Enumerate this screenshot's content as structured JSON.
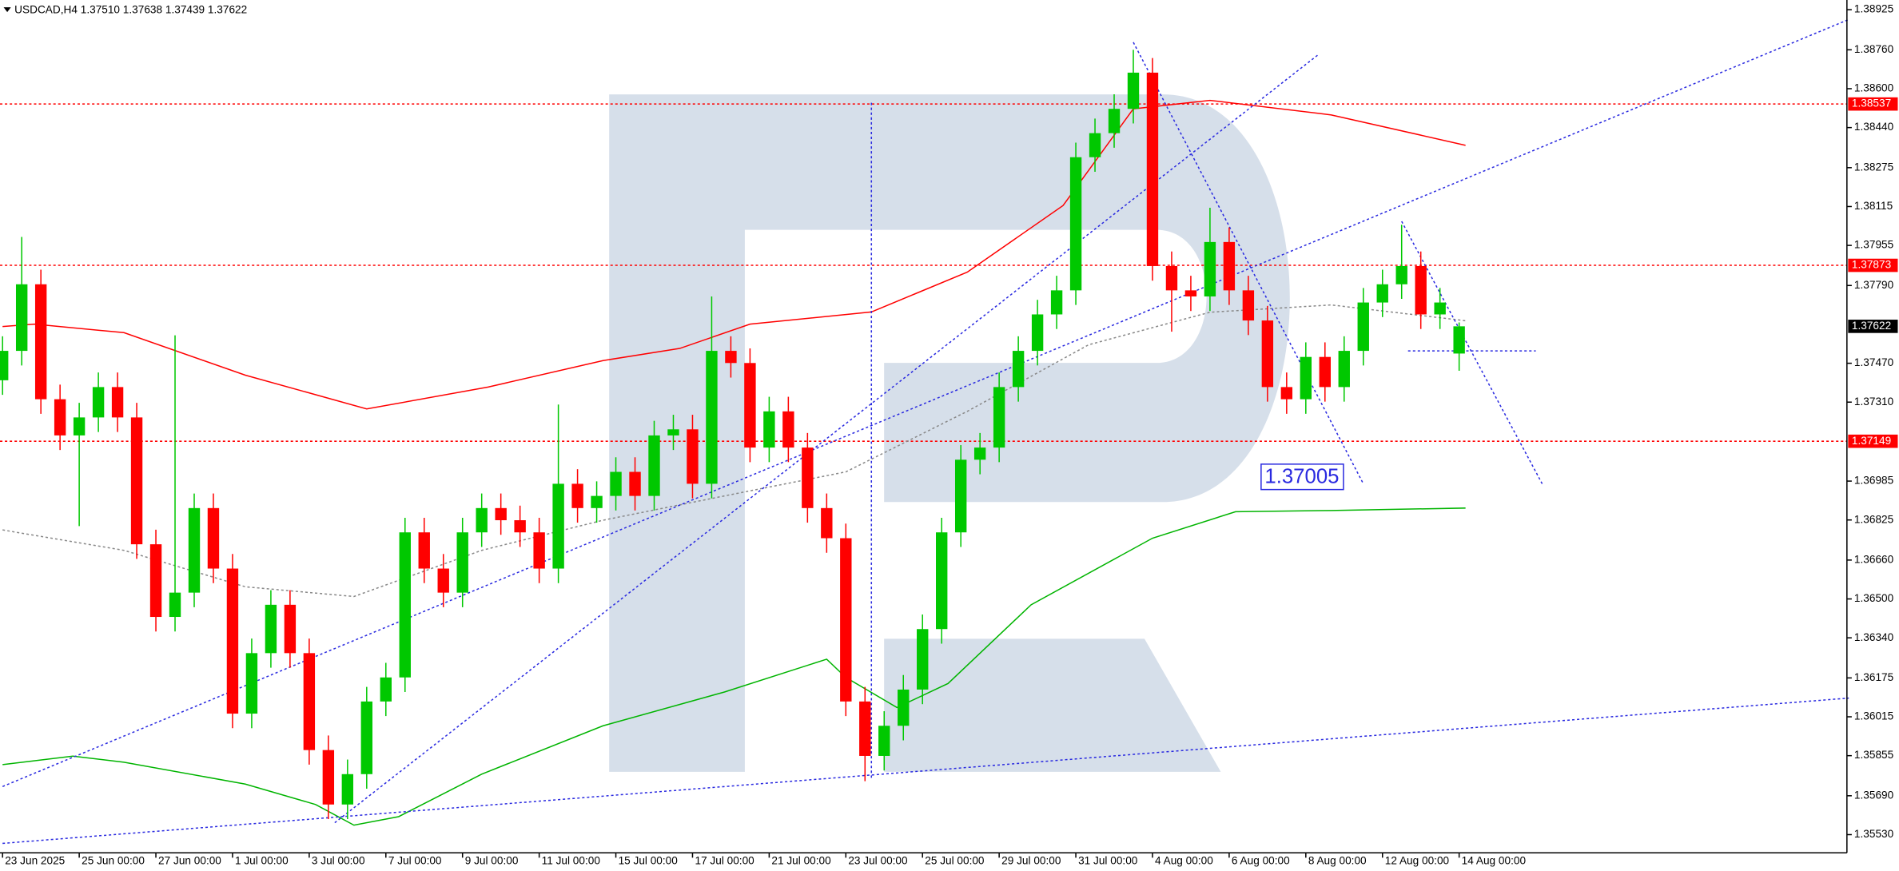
{
  "chart_data": {
    "type": "candlestick",
    "title": "USDCAD,H4  1.37510 1.37638 1.37439 1.37622",
    "x": [
      0,
      3,
      6,
      9,
      12,
      15,
      18,
      21,
      24,
      27,
      30,
      33,
      36,
      39,
      42,
      45,
      48,
      51,
      54,
      57,
      60,
      63,
      66,
      69,
      72,
      75,
      78,
      81,
      84,
      87,
      90,
      93,
      96,
      99,
      102,
      105,
      108,
      111,
      114,
      117,
      120,
      123,
      126,
      129,
      132,
      135,
      138,
      141,
      144,
      147,
      150,
      153,
      156,
      159,
      162,
      165,
      168,
      171,
      174,
      177,
      180,
      183,
      186,
      189,
      192,
      195,
      198,
      201,
      204,
      207,
      210,
      213,
      216,
      219,
      222,
      225,
      228
    ],
    "open": [
      1.374,
      1.37521,
      1.37795,
      1.37322,
      1.37173,
      1.37247,
      1.37372,
      1.37247,
      1.36725,
      1.36426,
      1.36526,
      1.36874,
      1.36625,
      1.36028,
      1.36277,
      1.36476,
      1.36277,
      1.35878,
      1.35654,
      1.35779,
      1.36078,
      1.36177,
      1.36774,
      1.36625,
      1.36526,
      1.36774,
      1.36874,
      1.36824,
      1.36774,
      1.36625,
      1.36974,
      1.36874,
      1.36924,
      1.37023,
      1.36924,
      1.37173,
      1.37198,
      1.36974,
      1.37521,
      1.37471,
      1.37123,
      1.37272,
      1.37123,
      1.36874,
      1.3675,
      1.36078,
      1.35854,
      1.35978,
      1.36127,
      1.36376,
      1.36774,
      1.37073,
      1.37123,
      1.37372,
      1.37521,
      1.37671,
      1.3777,
      1.38318,
      1.38417,
      1.38517,
      1.38666,
      1.3787,
      1.3777,
      1.37745,
      1.37969,
      1.3777,
      1.37646,
      1.37372,
      1.37322,
      1.37496,
      1.37372,
      1.37521,
      1.3772,
      1.37795,
      1.3787,
      1.37671,
      1.3751
    ],
    "high": [
      1.37581,
      1.3799,
      1.37855,
      1.37382,
      1.37307,
      1.37432,
      1.37432,
      1.37307,
      1.36785,
      1.37585,
      1.36934,
      1.36934,
      1.36685,
      1.36337,
      1.36536,
      1.36536,
      1.36337,
      1.35938,
      1.35839,
      1.36138,
      1.36237,
      1.36834,
      1.36834,
      1.36685,
      1.36834,
      1.36934,
      1.36934,
      1.36884,
      1.36834,
      1.373,
      1.37034,
      1.36984,
      1.37083,
      1.37083,
      1.37233,
      1.37258,
      1.37258,
      1.37745,
      1.37581,
      1.37531,
      1.37332,
      1.37332,
      1.37183,
      1.36934,
      1.3681,
      1.36138,
      1.36038,
      1.36187,
      1.36436,
      1.36834,
      1.37133,
      1.37183,
      1.37432,
      1.37581,
      1.37731,
      1.3783,
      1.38378,
      1.38477,
      1.38577,
      1.3876,
      1.38726,
      1.3793,
      1.3783,
      1.3811,
      1.38029,
      1.3783,
      1.37706,
      1.37432,
      1.37556,
      1.37556,
      1.37581,
      1.3778,
      1.37855,
      1.3804,
      1.3793,
      1.3778,
      1.37638
    ],
    "low": [
      1.3734,
      1.37461,
      1.37262,
      1.37113,
      1.368,
      1.37187,
      1.37187,
      1.36665,
      1.36366,
      1.36366,
      1.36466,
      1.36565,
      1.35968,
      1.35968,
      1.36217,
      1.36217,
      1.35818,
      1.35594,
      1.35594,
      1.35719,
      1.36018,
      1.36117,
      1.36565,
      1.36466,
      1.36466,
      1.36714,
      1.36764,
      1.36714,
      1.36565,
      1.36565,
      1.36814,
      1.36814,
      1.36864,
      1.36864,
      1.36864,
      1.37113,
      1.36914,
      1.36914,
      1.37411,
      1.37063,
      1.37063,
      1.37063,
      1.36814,
      1.3669,
      1.36018,
      1.3575,
      1.35794,
      1.35918,
      1.36067,
      1.36316,
      1.36714,
      1.37013,
      1.37063,
      1.37312,
      1.37461,
      1.37611,
      1.3771,
      1.38258,
      1.38357,
      1.38457,
      1.3781,
      1.376,
      1.37685,
      1.37685,
      1.3771,
      1.37586,
      1.37312,
      1.37262,
      1.37262,
      1.37312,
      1.37312,
      1.37461,
      1.3766,
      1.37735,
      1.37611,
      1.37611,
      1.37439
    ],
    "close": [
      1.37521,
      1.37795,
      1.37322,
      1.37173,
      1.37247,
      1.37372,
      1.37247,
      1.36725,
      1.36426,
      1.36526,
      1.36874,
      1.36625,
      1.36028,
      1.36277,
      1.36476,
      1.36277,
      1.35878,
      1.35654,
      1.35779,
      1.36078,
      1.36177,
      1.36774,
      1.36625,
      1.36526,
      1.36774,
      1.36874,
      1.36824,
      1.36774,
      1.36625,
      1.36974,
      1.36874,
      1.36924,
      1.37023,
      1.36924,
      1.37173,
      1.37198,
      1.36974,
      1.37521,
      1.37471,
      1.37123,
      1.37272,
      1.37123,
      1.36874,
      1.3675,
      1.36078,
      1.35854,
      1.35978,
      1.36127,
      1.36376,
      1.36774,
      1.37073,
      1.37123,
      1.37372,
      1.37521,
      1.37671,
      1.3777,
      1.38318,
      1.38417,
      1.38517,
      1.38666,
      1.3787,
      1.3777,
      1.37745,
      1.37969,
      1.3777,
      1.37646,
      1.37372,
      1.37322,
      1.37496,
      1.37372,
      1.37521,
      1.3772,
      1.37795,
      1.3787,
      1.37671,
      1.3772,
      1.37622
    ],
    "up_color": "#00c800",
    "down_color": "#ff0000",
    "xlim": [
      -0.4,
      288.7
    ],
    "ylim": [
      1.35455,
      1.38965
    ],
    "xticks": [
      {
        "value": 0,
        "label": "23 Jun 2025"
      },
      {
        "value": 12,
        "label": "25 Jun 00:00"
      },
      {
        "value": 24,
        "label": "27 Jun 00:00"
      },
      {
        "value": 36,
        "label": "1 Jul 00:00"
      },
      {
        "value": 48,
        "label": "3 Jul 00:00"
      },
      {
        "value": 60,
        "label": "7 Jul 00:00"
      },
      {
        "value": 72,
        "label": "9 Jul 00:00"
      },
      {
        "value": 84,
        "label": "11 Jul 00:00"
      },
      {
        "value": 96,
        "label": "15 Jul 00:00"
      },
      {
        "value": 108,
        "label": "17 Jul 00:00"
      },
      {
        "value": 120,
        "label": "21 Jul 00:00"
      },
      {
        "value": 132,
        "label": "23 Jul 00:00"
      },
      {
        "value": 144,
        "label": "25 Jul 00:00"
      },
      {
        "value": 156,
        "label": "29 Jul 00:00"
      },
      {
        "value": 168,
        "label": "31 Jul 00:00"
      },
      {
        "value": 180,
        "label": "4 Aug 00:00"
      },
      {
        "value": 192,
        "label": "6 Aug 00:00"
      },
      {
        "value": 204,
        "label": "8 Aug 00:00"
      },
      {
        "value": 216,
        "label": "12 Aug 00:00"
      },
      {
        "value": 228,
        "label": "14 Aug 00:00"
      }
    ],
    "yticks": [
      1.38925,
      {
        "value": 1.3876,
        "label": "1.38760"
      },
      {
        "value": 1.386,
        "label": "1.38600"
      },
      {
        "value": 1.3844,
        "label": "1.38440"
      },
      1.38275,
      1.38115,
      1.37955,
      {
        "value": 1.3779,
        "label": "1.37790"
      },
      {
        "value": 1.3747,
        "label": "1.37470"
      },
      {
        "value": 1.3731,
        "label": "1.37310"
      },
      1.36985,
      1.36825,
      {
        "value": 1.3666,
        "label": "1.36660"
      },
      {
        "value": 1.365,
        "label": "1.36500"
      },
      {
        "value": 1.3634,
        "label": "1.36340"
      },
      1.36175,
      1.36015,
      1.35855,
      {
        "value": 1.3569,
        "label": "1.35690"
      },
      {
        "value": 1.3553,
        "label": "1.35530"
      }
    ],
    "levels": [
      {
        "value": 1.38537,
        "color": "#ff0000",
        "line": true
      },
      {
        "value": 1.37873,
        "color": "#ff0000",
        "line": true
      },
      {
        "value": 1.37149,
        "color": "#ff0000",
        "line": true
      },
      {
        "value": 1.37622,
        "color": "#000000",
        "line": false
      }
    ],
    "lines": [
      {
        "color": "#ff0000",
        "style": "solid",
        "x": [
          0,
          5,
          19,
          38,
          57,
          76,
          94,
          106,
          117,
          136,
          151,
          166,
          177,
          189,
          208,
          229
        ],
        "values": [
          1.37621,
          1.37631,
          1.37596,
          1.37421,
          1.37282,
          1.37372,
          1.37481,
          1.37531,
          1.37631,
          1.37681,
          1.37845,
          1.38119,
          1.38517,
          1.38552,
          1.38492,
          1.38367
        ]
      },
      {
        "color": "#00b400",
        "style": "solid",
        "x": [
          0,
          11,
          19,
          38,
          49,
          55,
          62,
          75,
          94,
          113,
          129,
          132,
          140,
          148,
          161,
          180,
          193,
          208,
          229
        ],
        "values": [
          1.35818,
          1.35853,
          1.35828,
          1.35738,
          1.35654,
          1.35569,
          1.35604,
          1.35779,
          1.35978,
          1.36117,
          1.36252,
          1.36177,
          1.36053,
          1.36152,
          1.36476,
          1.3675,
          1.36859,
          1.36864,
          1.36874
        ]
      },
      {
        "color": "#888888",
        "style": "dotted",
        "x": [
          0,
          19,
          38,
          55,
          75,
          94,
          113,
          132,
          151,
          170,
          189,
          208,
          229
        ],
        "values": [
          1.36784,
          1.367,
          1.3655,
          1.3651,
          1.367,
          1.36824,
          1.36924,
          1.37023,
          1.37272,
          1.37546,
          1.3768,
          1.3771,
          1.37645
        ]
      },
      {
        "color": "#2a2ae0",
        "style": "dotted",
        "x": [
          0,
          289
        ],
        "values": [
          1.35728,
          1.38885
        ]
      },
      {
        "color": "#2a2ae0",
        "style": "dotted",
        "x": [
          52,
          206
        ],
        "values": [
          1.35579,
          1.38741
        ]
      },
      {
        "color": "#2a2ae0",
        "style": "dotted",
        "x": [
          0,
          289
        ],
        "values": [
          1.35494,
          1.36092
        ]
      },
      {
        "color": "#2a2ae0",
        "style": "dotted",
        "x": [
          177,
          213
        ],
        "values": [
          1.38791,
          1.36974
        ]
      },
      {
        "color": "#2a2ae0",
        "style": "dotted",
        "x": [
          219,
          241
        ],
        "values": [
          1.38054,
          1.36974
        ]
      },
      {
        "color": "#2a2ae0",
        "style": "dotted",
        "x": [
          220,
          240
        ],
        "values": [
          1.37521,
          1.37521
        ]
      },
      {
        "color": "#2a2ae0",
        "style": "dotted",
        "x": [
          136,
          136
        ],
        "values": [
          1.38542,
          1.35754
        ]
      }
    ],
    "annotation": {
      "value": 1.37005,
      "x": 197
    }
  }
}
